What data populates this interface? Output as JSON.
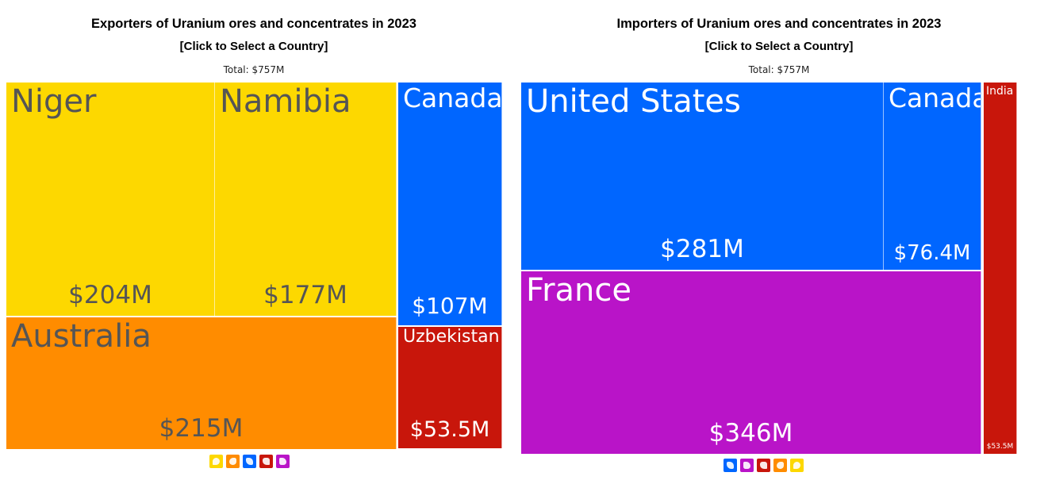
{
  "exporters": {
    "title": "Exporters of Uranium ores and concentrates in 2023",
    "subtitle": "[Click to Select a Country]",
    "total": "Total: $757M",
    "legend_icons": [
      {
        "name": "africa-icon",
        "color": "#fdd800"
      },
      {
        "name": "oceania-icon",
        "color": "#ff8c00"
      },
      {
        "name": "north-america-icon",
        "color": "#0066ff"
      },
      {
        "name": "asia-icon",
        "color": "#c8160b"
      },
      {
        "name": "europe-icon",
        "color": "#b914c8"
      }
    ]
  },
  "importers": {
    "title": "Importers of Uranium ores and concentrates in 2023",
    "subtitle": "[Click to Select a Country]",
    "total": "Total: $757M",
    "legend_icons": [
      {
        "name": "north-america-icon",
        "color": "#0066ff"
      },
      {
        "name": "europe-icon",
        "color": "#b914c8"
      },
      {
        "name": "asia-icon",
        "color": "#c8160b"
      },
      {
        "name": "oceania-icon",
        "color": "#ff8c00"
      },
      {
        "name": "africa-icon",
        "color": "#fdd800"
      }
    ]
  },
  "chart_data": [
    {
      "type": "treemap",
      "title": "Exporters of Uranium ores and concentrates in 2023",
      "subtitle": "[Click to Select a Country]",
      "total_label": "Total: $757M",
      "unit": "USD",
      "items": [
        {
          "name": "Australia",
          "value_label": "$215M",
          "value": 215,
          "color": "#ff8c00",
          "text_color": "#555555"
        },
        {
          "name": "Niger",
          "value_label": "$204M",
          "value": 204,
          "color": "#fdd800",
          "text_color": "#555555"
        },
        {
          "name": "Namibia",
          "value_label": "$177M",
          "value": 177,
          "color": "#fdd800",
          "text_color": "#555555"
        },
        {
          "name": "Canada",
          "value_label": "$107M",
          "value": 107,
          "color": "#0066ff",
          "text_color": "#ffffff"
        },
        {
          "name": "Uzbekistan",
          "value_label": "$53.5M",
          "value": 53.5,
          "color": "#c8160b",
          "text_color": "#ffffff"
        }
      ]
    },
    {
      "type": "treemap",
      "title": "Importers of Uranium ores and concentrates in 2023",
      "subtitle": "[Click to Select a Country]",
      "total_label": "Total: $757M",
      "unit": "USD",
      "items": [
        {
          "name": "France",
          "value_label": "$346M",
          "value": 346,
          "color": "#b914c8",
          "text_color": "#ffffff"
        },
        {
          "name": "United States",
          "value_label": "$281M",
          "value": 281,
          "color": "#0066ff",
          "text_color": "#ffffff"
        },
        {
          "name": "Canada",
          "value_label": "$76.4M",
          "value": 76.4,
          "color": "#0066ff",
          "text_color": "#ffffff"
        },
        {
          "name": "India",
          "value_label": "$53.5M",
          "value": 53.5,
          "color": "#c8160b",
          "text_color": "#ffffff"
        }
      ]
    }
  ]
}
